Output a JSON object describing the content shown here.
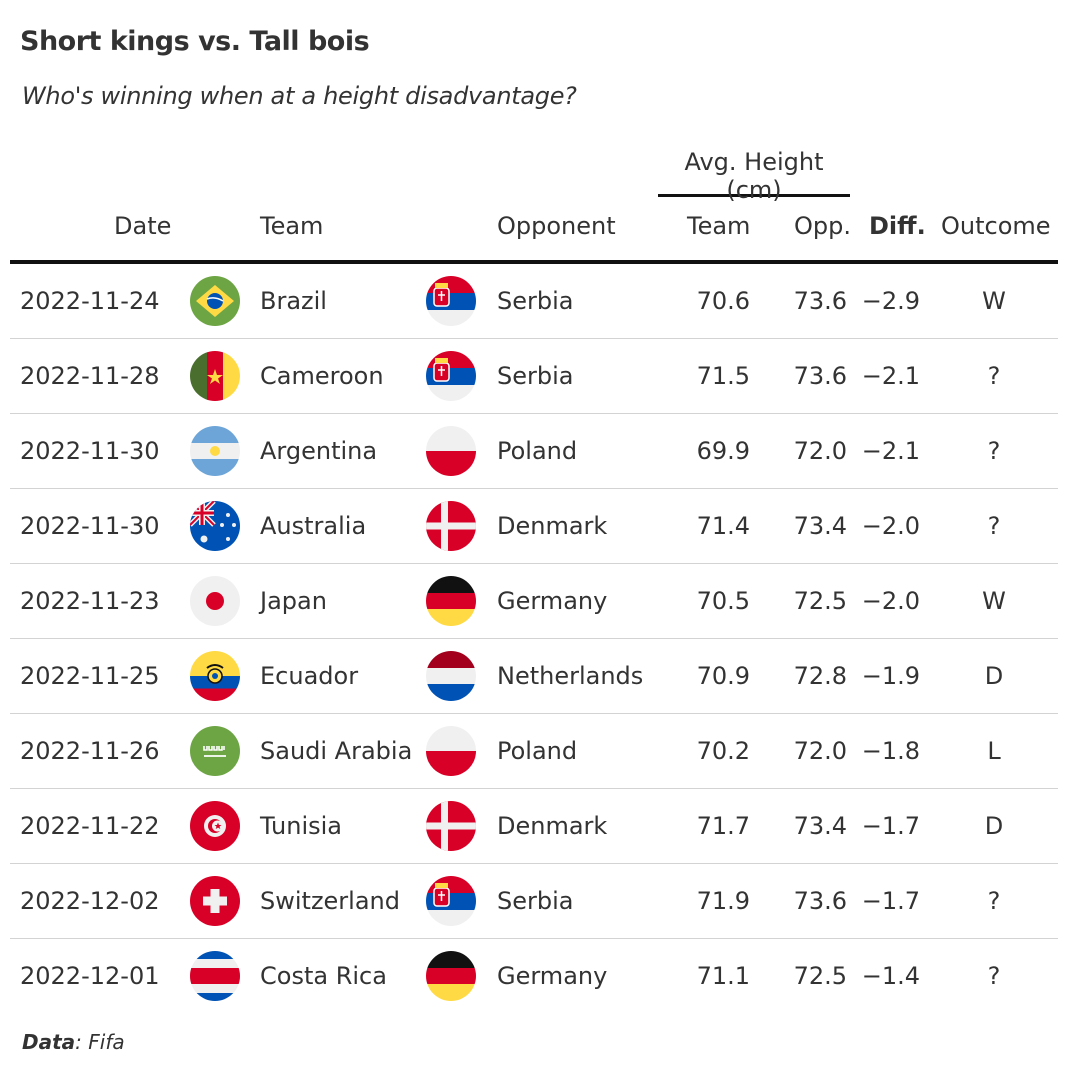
{
  "title": "Short kings vs. Tall bois",
  "subtitle": "Who's winning when at a height disadvantage?",
  "spanner_label": "Avg. Height (cm)",
  "columns": {
    "date": "Date",
    "team": "Team",
    "opponent": "Opponent",
    "team_height": "Team",
    "opp_height": "Opp.",
    "diff": "Diff.",
    "outcome": "Outcome"
  },
  "footer": {
    "label": "Data",
    "source": ": Fifa"
  },
  "chart_data": {
    "type": "table",
    "title": "Short kings vs. Tall bois",
    "subtitle": "Who's winning when at a height disadvantage?",
    "rows": [
      {
        "date": "2022-11-24",
        "team": "Brazil",
        "team_flag": "brazil-flag",
        "opponent": "Serbia",
        "opp_flag": "serbia-flag",
        "team_height": "70.6",
        "opp_height": "73.6",
        "diff": "−2.9",
        "outcome": "W"
      },
      {
        "date": "2022-11-28",
        "team": "Cameroon",
        "team_flag": "cameroon-flag",
        "opponent": "Serbia",
        "opp_flag": "serbia-flag",
        "team_height": "71.5",
        "opp_height": "73.6",
        "diff": "−2.1",
        "outcome": "?"
      },
      {
        "date": "2022-11-30",
        "team": "Argentina",
        "team_flag": "argentina-flag",
        "opponent": "Poland",
        "opp_flag": "poland-flag",
        "team_height": "69.9",
        "opp_height": "72.0",
        "diff": "−2.1",
        "outcome": "?"
      },
      {
        "date": "2022-11-30",
        "team": "Australia",
        "team_flag": "australia-flag",
        "opponent": "Denmark",
        "opp_flag": "denmark-flag",
        "team_height": "71.4",
        "opp_height": "73.4",
        "diff": "−2.0",
        "outcome": "?"
      },
      {
        "date": "2022-11-23",
        "team": "Japan",
        "team_flag": "japan-flag",
        "opponent": "Germany",
        "opp_flag": "germany-flag",
        "team_height": "70.5",
        "opp_height": "72.5",
        "diff": "−2.0",
        "outcome": "W"
      },
      {
        "date": "2022-11-25",
        "team": "Ecuador",
        "team_flag": "ecuador-flag",
        "opponent": "Netherlands",
        "opp_flag": "netherlands-flag",
        "team_height": "70.9",
        "opp_height": "72.8",
        "diff": "−1.9",
        "outcome": "D"
      },
      {
        "date": "2022-11-26",
        "team": "Saudi Arabia",
        "team_flag": "saudi-arabia-flag",
        "opponent": "Poland",
        "opp_flag": "poland-flag",
        "team_height": "70.2",
        "opp_height": "72.0",
        "diff": "−1.8",
        "outcome": "L"
      },
      {
        "date": "2022-11-22",
        "team": "Tunisia",
        "team_flag": "tunisia-flag",
        "opponent": "Denmark",
        "opp_flag": "denmark-flag",
        "team_height": "71.7",
        "opp_height": "73.4",
        "diff": "−1.7",
        "outcome": "D"
      },
      {
        "date": "2022-12-02",
        "team": "Switzerland",
        "team_flag": "switzerland-flag",
        "opponent": "Serbia",
        "opp_flag": "serbia-flag",
        "team_height": "71.9",
        "opp_height": "73.6",
        "diff": "−1.7",
        "outcome": "?"
      },
      {
        "date": "2022-12-01",
        "team": "Costa Rica",
        "team_flag": "costa-rica-flag",
        "opponent": "Germany",
        "opp_flag": "germany-flag",
        "team_height": "71.1",
        "opp_height": "72.5",
        "diff": "−1.4",
        "outcome": "?"
      }
    ]
  }
}
